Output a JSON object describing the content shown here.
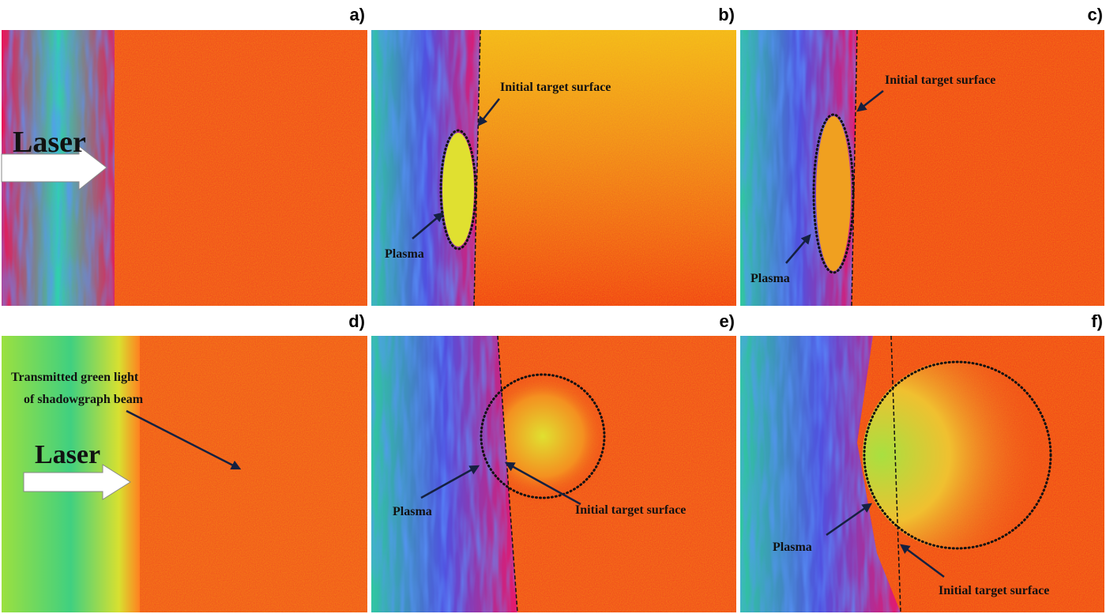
{
  "panels": [
    {
      "label": "a)",
      "annotations": {
        "laser": "Laser"
      }
    },
    {
      "label": "b)",
      "annotations": {
        "surface": "Initial target surface",
        "plasma": "Plasma"
      }
    },
    {
      "label": "c)",
      "annotations": {
        "surface": "Initial target surface",
        "plasma": "Plasma"
      }
    },
    {
      "label": "d)",
      "annotations": {
        "laser": "Laser",
        "transmitted": [
          "Transmitted green light",
          "of shadowgraph beam"
        ]
      }
    },
    {
      "label": "e)",
      "annotations": {
        "surface": "Initial target surface",
        "plasma": "Plasma"
      }
    },
    {
      "label": "f)",
      "annotations": {
        "surface": "Initial target surface",
        "plasma": "Plasma"
      }
    }
  ]
}
